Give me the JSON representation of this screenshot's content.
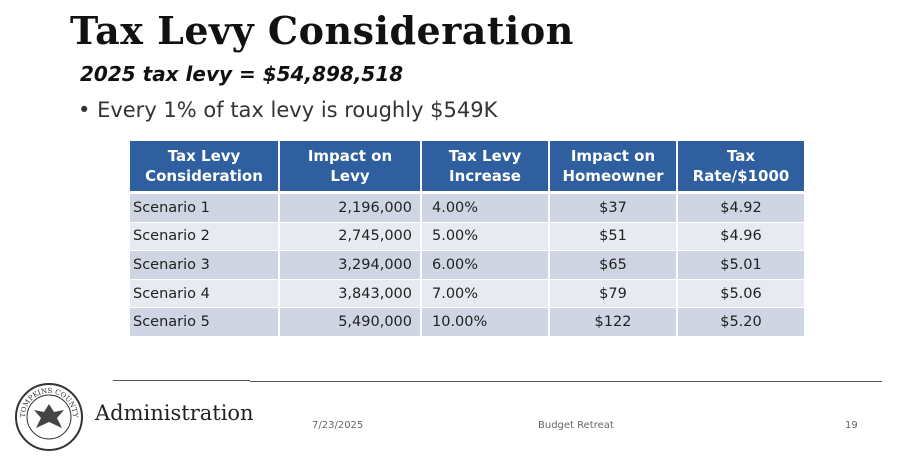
{
  "header": {
    "title": "Tax Levy Consideration",
    "subtitle": "2025 tax levy = $54,898,518",
    "bullet": "Every 1% of tax levy is roughly $549K"
  },
  "table": {
    "columns": [
      [
        "Tax Levy",
        "Consideration"
      ],
      [
        "Impact on",
        "Levy"
      ],
      [
        "Tax Levy",
        "Increase"
      ],
      [
        "Impact on",
        "Homeowner"
      ],
      [
        "Tax",
        "Rate/$1000"
      ]
    ],
    "rows": [
      [
        "Scenario 1",
        "2,196,000",
        "4.00%",
        "$37",
        "$4.92"
      ],
      [
        "Scenario 2",
        "2,745,000",
        "5.00%",
        "$51",
        "$4.96"
      ],
      [
        "Scenario 3",
        "3,294,000",
        "6.00%",
        "$65",
        "$5.01"
      ],
      [
        "Scenario 4",
        "3,843,000",
        "7.00%",
        "$79",
        "$5.06"
      ],
      [
        "Scenario 5",
        "5,490,000",
        "10.00%",
        "$122",
        "$5.20"
      ]
    ]
  },
  "footer": {
    "logo_text": "TOMPKINS COUNTY",
    "department": "Administration",
    "date": "7/23/2025",
    "event": "Budget Retreat",
    "page": "19"
  }
}
